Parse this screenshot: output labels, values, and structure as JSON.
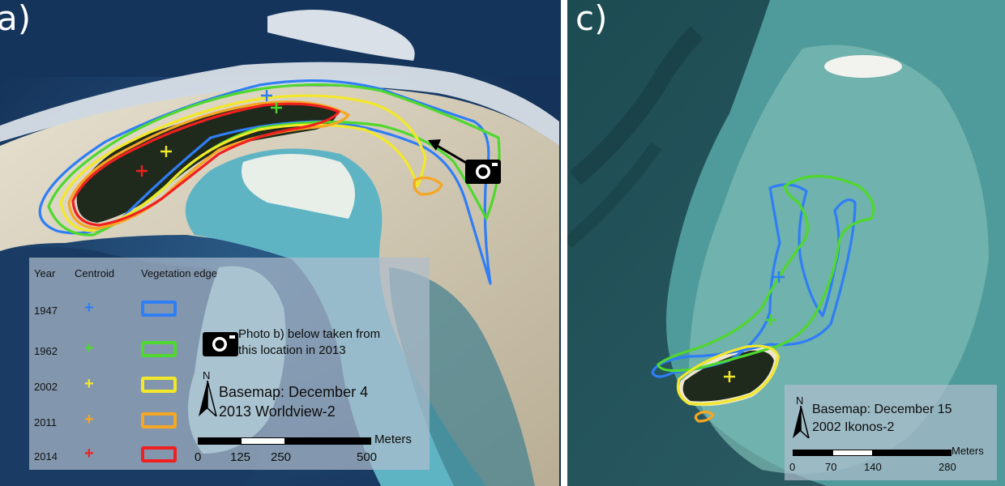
{
  "panel_a": {
    "label": "a)",
    "legend": {
      "headers": {
        "year": "Year",
        "centroid": "Centroid",
        "edge": "Vegetation edge"
      },
      "rows": [
        {
          "year": "1947",
          "color": "#2f7ef5"
        },
        {
          "year": "1962",
          "color": "#4fd82e"
        },
        {
          "year": "2002",
          "color": "#f2e82a"
        },
        {
          "year": "2011",
          "color": "#f5a623"
        },
        {
          "year": "2014",
          "color": "#f02020"
        }
      ]
    },
    "photo_note": {
      "line1": "Photo b) below taken from",
      "line2": "this location in 2013"
    },
    "north": "N",
    "basemap": {
      "line1": "Basemap: December 4",
      "line2": "2013 Worldview-2"
    },
    "scale": {
      "unit": "Meters",
      "ticks": [
        "0",
        "125",
        "250",
        "500"
      ]
    }
  },
  "panel_c": {
    "label": "c)",
    "north": "N",
    "basemap": {
      "line1": "Basemap: December 15",
      "line2": "2002 Ikonos-2"
    },
    "scale": {
      "unit": "Meters",
      "ticks": [
        "0",
        "70",
        "140",
        "280"
      ]
    }
  },
  "colors": {
    "ocean": "#1d3f66",
    "lagoon": "#4fa0b5",
    "reef": "#c9b99a",
    "vegetation": "#1f2a1c"
  }
}
